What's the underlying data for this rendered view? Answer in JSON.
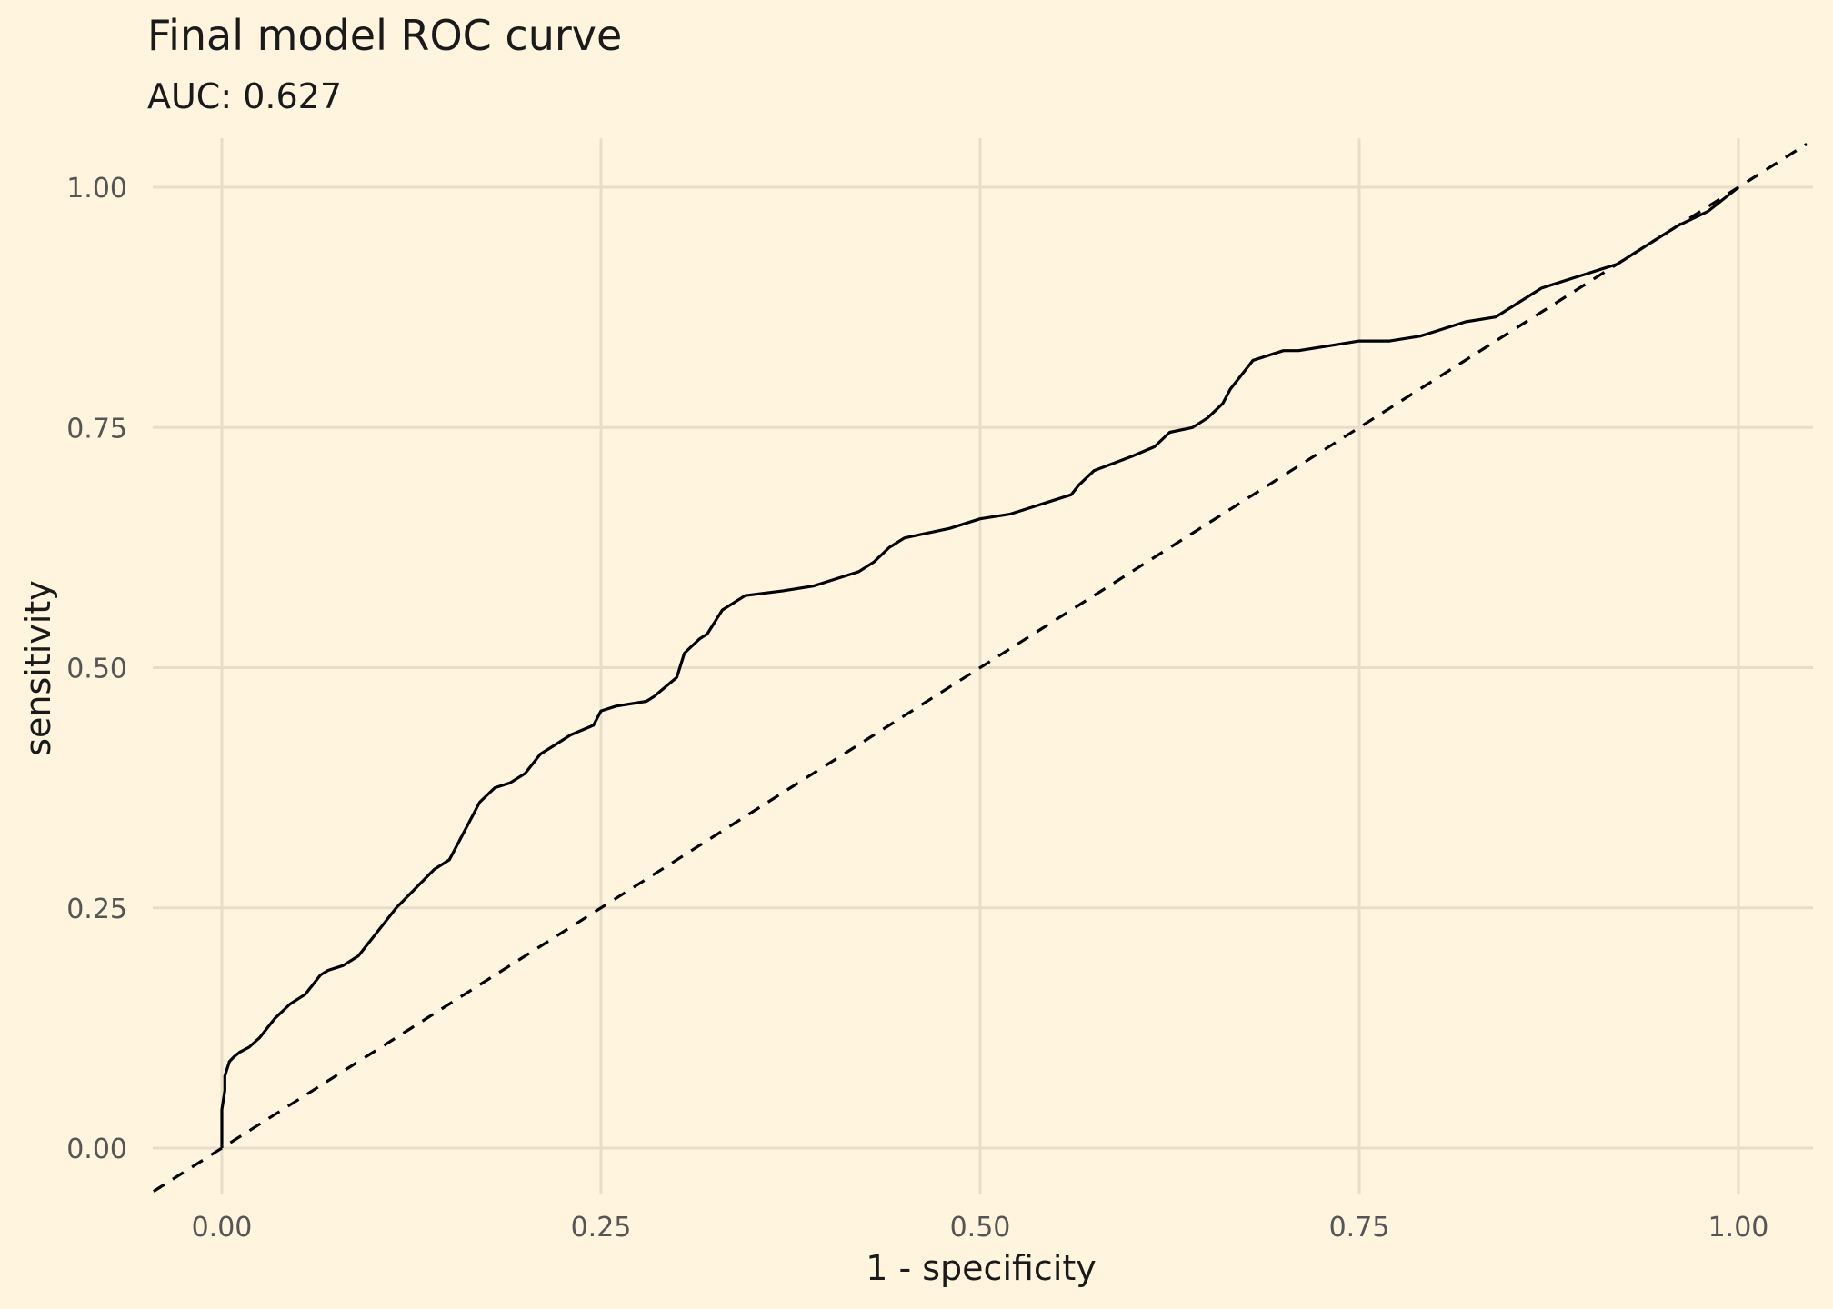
{
  "chart_data": {
    "type": "line",
    "title": "Final model ROC curve",
    "subtitle": "AUC: 0.627",
    "xlabel": "1 - specificity",
    "ylabel": "sensitivity",
    "xlim": [
      -0.045,
      1.045
    ],
    "ylim": [
      -0.045,
      1.045
    ],
    "x_ticks": [
      "0.00",
      "0.25",
      "0.50",
      "0.75",
      "1.00"
    ],
    "y_ticks": [
      "0.00",
      "0.25",
      "0.50",
      "0.75",
      "1.00"
    ],
    "grid": true,
    "colors": {
      "background": "#FFF4DD",
      "grid": "#E8DEC7",
      "curve": "#000000",
      "reference": "#000000",
      "tick_text": "#555555",
      "label_text": "#1a1a1a"
    },
    "series": [
      {
        "style": "solid",
        "x": [
          0.0,
          0.0,
          0.002,
          0.002,
          0.005,
          0.008,
          0.012,
          0.018,
          0.025,
          0.03,
          0.035,
          0.045,
          0.05,
          0.055,
          0.06,
          0.065,
          0.07,
          0.08,
          0.09,
          0.1,
          0.11,
          0.115,
          0.14,
          0.15,
          0.16,
          0.17,
          0.18,
          0.19,
          0.2,
          0.21,
          0.22,
          0.23,
          0.245,
          0.25,
          0.26,
          0.28,
          0.285,
          0.3,
          0.305,
          0.315,
          0.32,
          0.33,
          0.345,
          0.37,
          0.39,
          0.4,
          0.41,
          0.42,
          0.43,
          0.44,
          0.45,
          0.48,
          0.5,
          0.52,
          0.53,
          0.54,
          0.56,
          0.565,
          0.575,
          0.6,
          0.615,
          0.625,
          0.64,
          0.65,
          0.66,
          0.665,
          0.67,
          0.68,
          0.7,
          0.71,
          0.73,
          0.75,
          0.77,
          0.79,
          0.8,
          0.82,
          0.84,
          0.85,
          0.86,
          0.87,
          0.88,
          0.89,
          0.9,
          0.91,
          0.92,
          0.93,
          0.94,
          0.95,
          0.96,
          0.98,
          1.0
        ],
        "y": [
          0.0,
          0.04,
          0.06,
          0.075,
          0.09,
          0.095,
          0.1,
          0.105,
          0.115,
          0.125,
          0.135,
          0.15,
          0.155,
          0.16,
          0.17,
          0.18,
          0.185,
          0.19,
          0.2,
          0.22,
          0.24,
          0.25,
          0.29,
          0.3,
          0.33,
          0.36,
          0.375,
          0.38,
          0.39,
          0.41,
          0.42,
          0.43,
          0.44,
          0.455,
          0.46,
          0.465,
          0.47,
          0.49,
          0.515,
          0.53,
          0.535,
          0.56,
          0.575,
          0.58,
          0.585,
          0.59,
          0.595,
          0.6,
          0.61,
          0.625,
          0.635,
          0.645,
          0.655,
          0.66,
          0.665,
          0.67,
          0.68,
          0.69,
          0.705,
          0.72,
          0.73,
          0.745,
          0.75,
          0.76,
          0.775,
          0.79,
          0.8,
          0.82,
          0.83,
          0.83,
          0.835,
          0.84,
          0.84,
          0.845,
          0.85,
          0.86,
          0.865,
          0.875,
          0.885,
          0.895,
          0.9,
          0.905,
          0.91,
          0.915,
          0.92,
          0.93,
          0.94,
          0.95,
          0.96,
          0.975,
          1.0
        ]
      },
      {
        "style": "dashed",
        "x": [
          -0.045,
          1.045
        ],
        "y": [
          -0.045,
          1.045
        ]
      }
    ]
  }
}
